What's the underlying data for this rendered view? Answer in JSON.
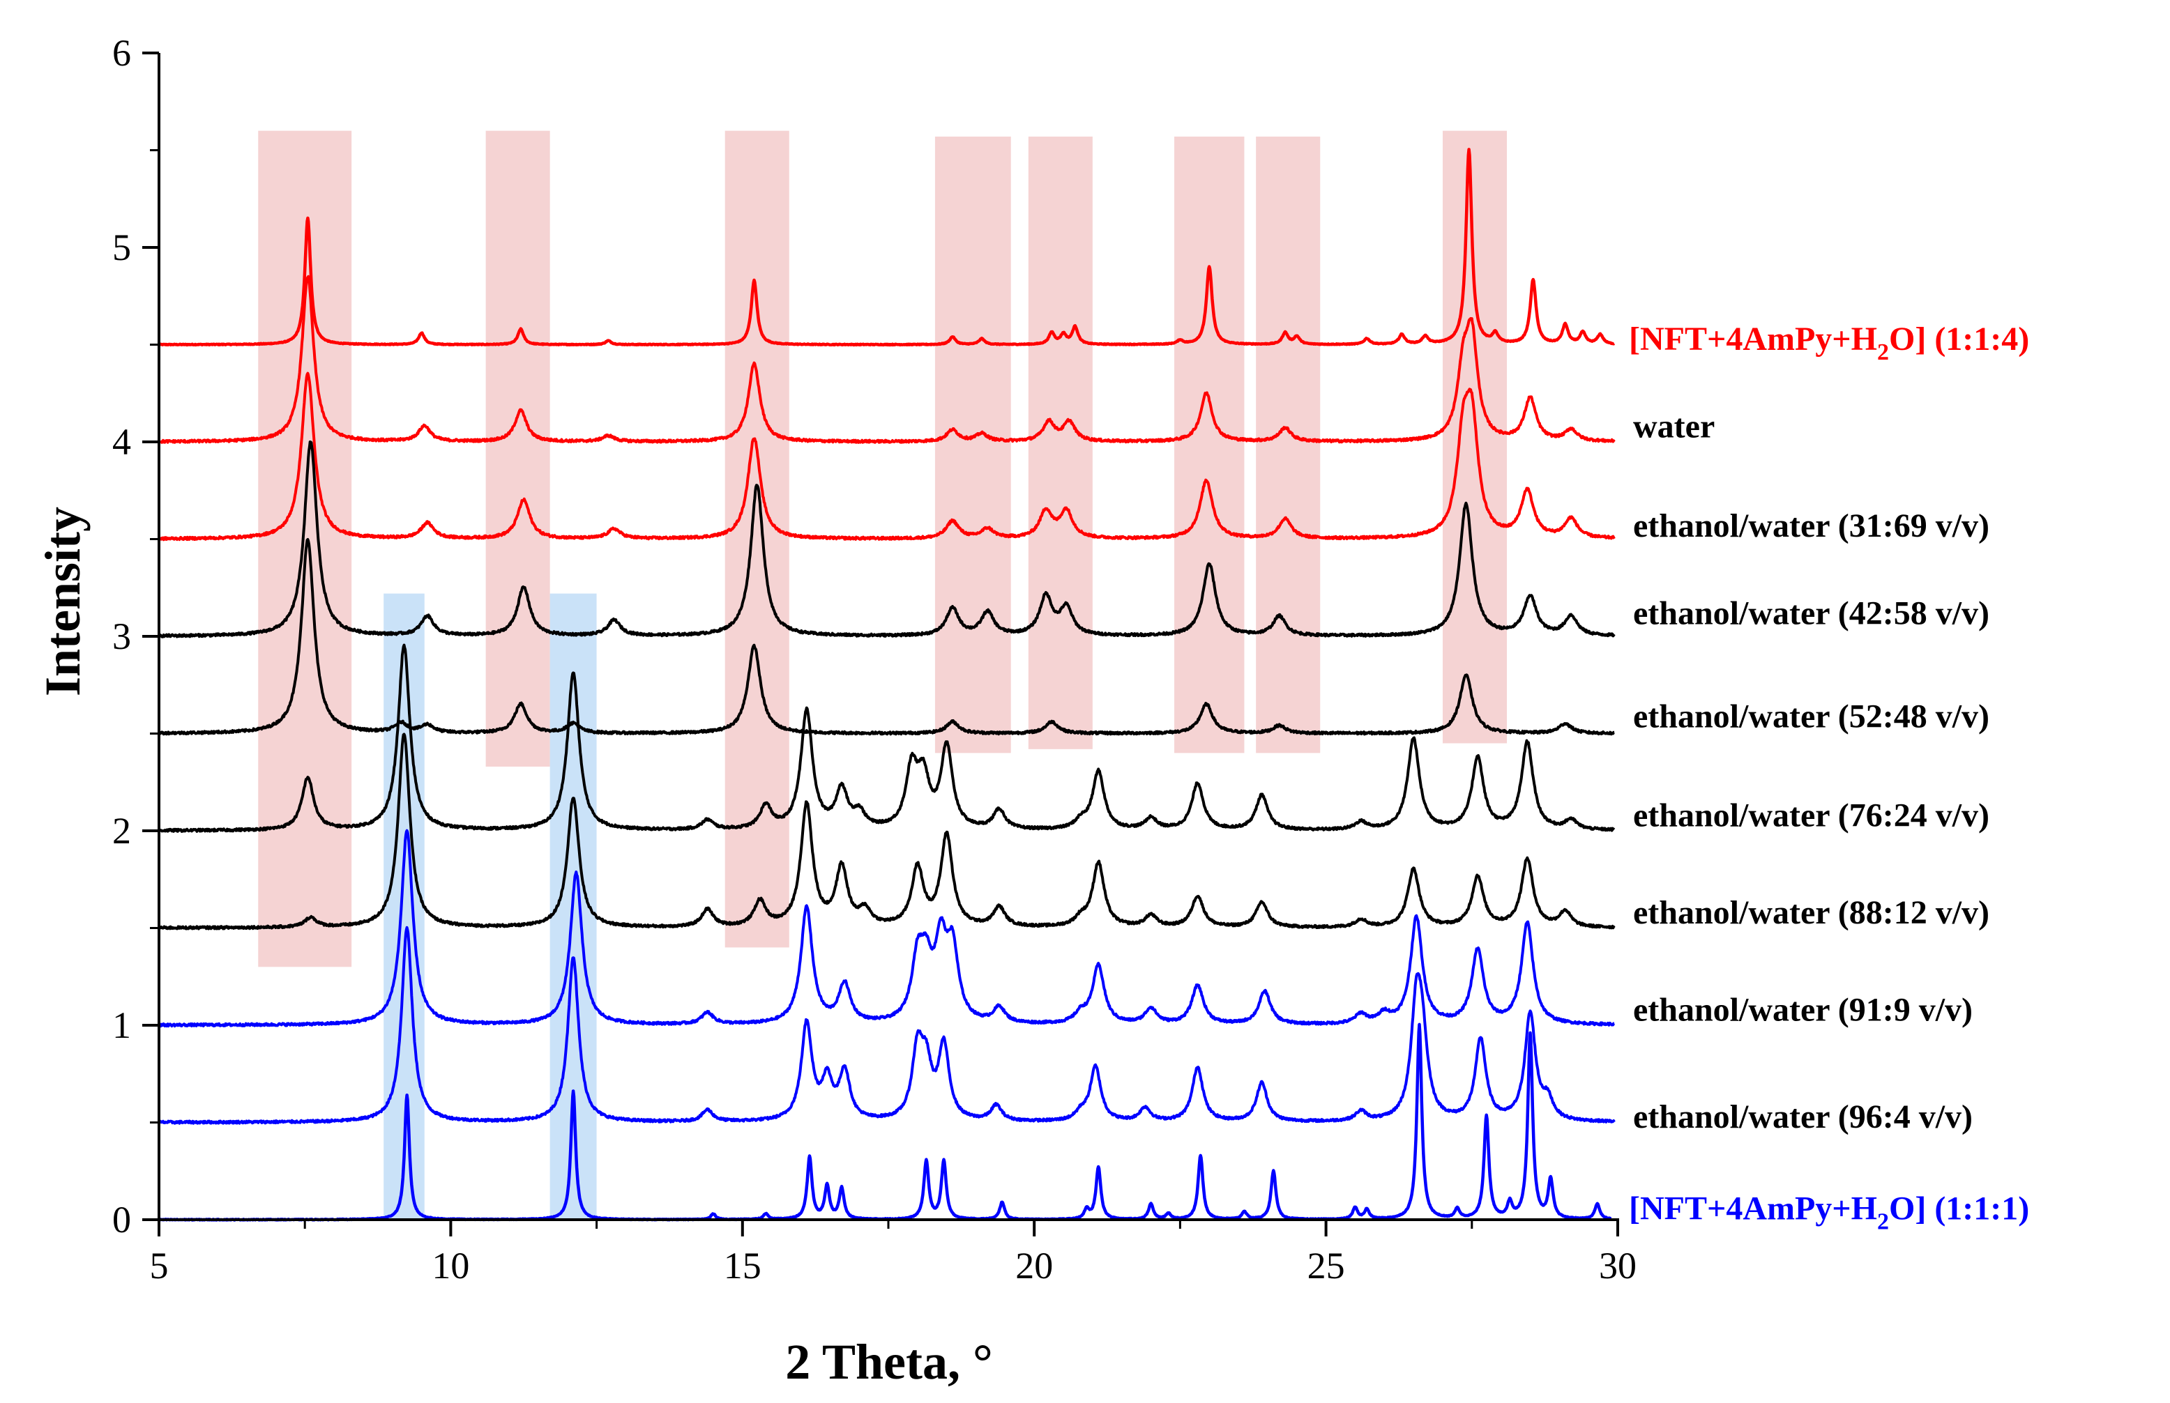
{
  "chart_data": {
    "type": "line",
    "title": "",
    "xlabel": "2 Theta, °",
    "ylabel": "Intensity",
    "xlim": [
      5,
      30
    ],
    "ylim": [
      0,
      6
    ],
    "xticks": [
      5,
      10,
      15,
      20,
      25,
      30
    ],
    "yticks": [
      0,
      1,
      2,
      3,
      4,
      5,
      6
    ],
    "grid": false,
    "colors": {
      "red": "#ff0000",
      "black": "#000000",
      "blue": "#0000ff",
      "highlight_red": "#f2c4c4",
      "highlight_blue": "#b8d8f5"
    },
    "highlight_bands": [
      {
        "color": "red",
        "x0": 6.7,
        "x1": 8.3,
        "y0": 1.3,
        "y1": 5.6
      },
      {
        "color": "red",
        "x0": 10.6,
        "x1": 11.7,
        "y0": 2.33,
        "y1": 5.6
      },
      {
        "color": "red",
        "x0": 14.7,
        "x1": 15.8,
        "y0": 1.4,
        "y1": 5.6
      },
      {
        "color": "red",
        "x0": 18.3,
        "x1": 19.6,
        "y0": 2.4,
        "y1": 5.57
      },
      {
        "color": "red",
        "x0": 19.9,
        "x1": 21.0,
        "y0": 2.42,
        "y1": 5.57
      },
      {
        "color": "red",
        "x0": 22.4,
        "x1": 23.6,
        "y0": 2.4,
        "y1": 5.57
      },
      {
        "color": "red",
        "x0": 23.8,
        "x1": 24.9,
        "y0": 2.4,
        "y1": 5.57
      },
      {
        "color": "red",
        "x0": 27.0,
        "x1": 28.1,
        "y0": 2.45,
        "y1": 5.6
      },
      {
        "color": "blue",
        "x0": 8.85,
        "x1": 9.55,
        "y0": 0.0,
        "y1": 3.22
      },
      {
        "color": "blue",
        "x0": 11.7,
        "x1": 12.5,
        "y0": 0.0,
        "y1": 3.22
      }
    ],
    "series": [
      {
        "name": "[NFT+4AmPy+H2O] (1:1:4)",
        "label_main": "[NFT+4AmPy+H",
        "label_sub": "2",
        "label_tail": "O] (1:1:4)",
        "color": "red",
        "baseline": 4.5,
        "width": 0.06,
        "label_y": 4.53,
        "peaks": [
          [
            7.55,
            0.65
          ],
          [
            9.5,
            0.06
          ],
          [
            11.2,
            0.08
          ],
          [
            12.7,
            0.02
          ],
          [
            15.2,
            0.33
          ],
          [
            18.6,
            0.04
          ],
          [
            19.1,
            0.03
          ],
          [
            20.3,
            0.06
          ],
          [
            20.5,
            0.05
          ],
          [
            20.7,
            0.09
          ],
          [
            22.5,
            0.02
          ],
          [
            23.0,
            0.4
          ],
          [
            24.3,
            0.06
          ],
          [
            24.5,
            0.04
          ],
          [
            25.7,
            0.03
          ],
          [
            26.3,
            0.05
          ],
          [
            26.7,
            0.04
          ],
          [
            27.45,
            1.0
          ],
          [
            27.9,
            0.05
          ],
          [
            28.55,
            0.33
          ],
          [
            29.1,
            0.1
          ],
          [
            29.4,
            0.06
          ],
          [
            29.7,
            0.05
          ]
        ]
      },
      {
        "name": "water",
        "label_main": "water",
        "label_sub": "",
        "label_tail": "",
        "color": "red",
        "baseline": 4.0,
        "width": 0.12,
        "label_y": 4.08,
        "peaks": [
          [
            7.55,
            0.85
          ],
          [
            9.55,
            0.08
          ],
          [
            11.2,
            0.16
          ],
          [
            12.7,
            0.03
          ],
          [
            15.2,
            0.4
          ],
          [
            18.6,
            0.06
          ],
          [
            19.1,
            0.04
          ],
          [
            20.25,
            0.1
          ],
          [
            20.6,
            0.1
          ],
          [
            22.95,
            0.25
          ],
          [
            24.3,
            0.07
          ],
          [
            27.35,
            0.32
          ],
          [
            27.5,
            0.5
          ],
          [
            28.5,
            0.22
          ],
          [
            29.2,
            0.06
          ]
        ]
      },
      {
        "name": "ethanol/water (31:69 v/v)",
        "label_main": "ethanol/water (31:69 v/v)",
        "label_sub": "",
        "label_tail": "",
        "color": "red",
        "baseline": 3.5,
        "width": 0.13,
        "label_y": 3.57,
        "peaks": [
          [
            7.55,
            0.85
          ],
          [
            9.6,
            0.08
          ],
          [
            11.25,
            0.2
          ],
          [
            12.8,
            0.05
          ],
          [
            15.2,
            0.52
          ],
          [
            18.6,
            0.09
          ],
          [
            19.2,
            0.05
          ],
          [
            20.2,
            0.14
          ],
          [
            20.55,
            0.14
          ],
          [
            22.95,
            0.3
          ],
          [
            24.3,
            0.1
          ],
          [
            27.35,
            0.45
          ],
          [
            27.5,
            0.55
          ],
          [
            28.45,
            0.24
          ],
          [
            29.2,
            0.1
          ]
        ]
      },
      {
        "name": "ethanol/water (42:58 v/v)",
        "label_main": "ethanol/water (42:58 v/v)",
        "label_sub": "",
        "label_tail": "",
        "color": "black",
        "baseline": 3.0,
        "width": 0.13,
        "label_y": 3.12,
        "peaks": [
          [
            7.6,
            1.0
          ],
          [
            9.6,
            0.1
          ],
          [
            11.25,
            0.25
          ],
          [
            12.8,
            0.08
          ],
          [
            15.25,
            0.78
          ],
          [
            18.6,
            0.14
          ],
          [
            19.2,
            0.12
          ],
          [
            20.2,
            0.2
          ],
          [
            20.55,
            0.14
          ],
          [
            23.0,
            0.37
          ],
          [
            24.2,
            0.1
          ],
          [
            27.4,
            0.68
          ],
          [
            28.5,
            0.2
          ],
          [
            29.2,
            0.1
          ]
        ]
      },
      {
        "name": "ethanol/water (52:48 v/v)",
        "label_main": "ethanol/water (52:48 v/v)",
        "label_sub": "",
        "label_tail": "",
        "color": "black",
        "baseline": 2.5,
        "width": 0.13,
        "label_y": 2.59,
        "peaks": [
          [
            7.55,
            1.0
          ],
          [
            9.15,
            0.05
          ],
          [
            9.6,
            0.04
          ],
          [
            11.2,
            0.15
          ],
          [
            12.1,
            0.05
          ],
          [
            15.2,
            0.45
          ],
          [
            18.6,
            0.06
          ],
          [
            20.3,
            0.06
          ],
          [
            22.95,
            0.15
          ],
          [
            24.2,
            0.04
          ],
          [
            27.4,
            0.3
          ],
          [
            29.1,
            0.05
          ]
        ]
      },
      {
        "name": "ethanol/water (76:24 v/v)",
        "label_main": "ethanol/water (76:24 v/v)",
        "label_sub": "",
        "label_tail": "",
        "color": "black",
        "baseline": 2.0,
        "width": 0.12,
        "label_y": 2.08,
        "peaks": [
          [
            7.55,
            0.27
          ],
          [
            9.2,
            0.95
          ],
          [
            12.1,
            0.81
          ],
          [
            14.4,
            0.05
          ],
          [
            15.4,
            0.12
          ],
          [
            16.1,
            0.61
          ],
          [
            16.7,
            0.2
          ],
          [
            17.0,
            0.08
          ],
          [
            17.9,
            0.3
          ],
          [
            18.1,
            0.25
          ],
          [
            18.5,
            0.42
          ],
          [
            19.4,
            0.1
          ],
          [
            20.8,
            0.04
          ],
          [
            21.1,
            0.3
          ],
          [
            22.0,
            0.06
          ],
          [
            22.8,
            0.24
          ],
          [
            23.9,
            0.18
          ],
          [
            25.6,
            0.04
          ],
          [
            26.5,
            0.47
          ],
          [
            27.6,
            0.37
          ],
          [
            28.45,
            0.45
          ],
          [
            29.2,
            0.05
          ]
        ]
      },
      {
        "name": "ethanol/water (88:12 v/v)",
        "label_main": "ethanol/water (88:12 v/v)",
        "label_sub": "",
        "label_tail": "",
        "color": "black",
        "baseline": 1.5,
        "width": 0.12,
        "label_y": 1.58,
        "peaks": [
          [
            7.6,
            0.05
          ],
          [
            9.2,
            1.0
          ],
          [
            12.1,
            0.67
          ],
          [
            14.4,
            0.09
          ],
          [
            15.3,
            0.13
          ],
          [
            16.1,
            0.63
          ],
          [
            16.7,
            0.3
          ],
          [
            17.1,
            0.08
          ],
          [
            18.0,
            0.3
          ],
          [
            18.5,
            0.47
          ],
          [
            19.4,
            0.1
          ],
          [
            20.8,
            0.04
          ],
          [
            21.1,
            0.33
          ],
          [
            22.0,
            0.06
          ],
          [
            22.8,
            0.16
          ],
          [
            23.9,
            0.13
          ],
          [
            25.6,
            0.04
          ],
          [
            26.5,
            0.3
          ],
          [
            27.6,
            0.26
          ],
          [
            28.45,
            0.35
          ],
          [
            29.1,
            0.08
          ]
        ]
      },
      {
        "name": "ethanol/water (91:9 v/v)",
        "label_main": "ethanol/water (91:9 v/v)",
        "label_sub": "",
        "label_tail": "",
        "color": "blue",
        "baseline": 1.0,
        "width": 0.12,
        "label_y": 1.08,
        "peaks": [
          [
            9.25,
            1.0
          ],
          [
            12.15,
            0.78
          ],
          [
            14.4,
            0.06
          ],
          [
            16.1,
            0.6
          ],
          [
            16.75,
            0.2
          ],
          [
            18.0,
            0.3
          ],
          [
            18.15,
            0.25
          ],
          [
            18.4,
            0.38
          ],
          [
            18.6,
            0.36
          ],
          [
            19.4,
            0.08
          ],
          [
            20.8,
            0.05
          ],
          [
            21.1,
            0.3
          ],
          [
            22.0,
            0.08
          ],
          [
            22.8,
            0.2
          ],
          [
            23.95,
            0.17
          ],
          [
            25.6,
            0.05
          ],
          [
            26.0,
            0.05
          ],
          [
            26.55,
            0.55
          ],
          [
            27.6,
            0.38
          ],
          [
            28.45,
            0.52
          ]
        ]
      },
      {
        "name": "ethanol/water (96:4 v/v)",
        "label_main": "ethanol/water (96:4 v/v)",
        "label_sub": "",
        "label_tail": "",
        "color": "blue",
        "baseline": 0.5,
        "width": 0.11,
        "label_y": 0.53,
        "peaks": [
          [
            9.25,
            1.0
          ],
          [
            12.1,
            0.85
          ],
          [
            14.4,
            0.06
          ],
          [
            16.1,
            0.5
          ],
          [
            16.45,
            0.2
          ],
          [
            16.75,
            0.25
          ],
          [
            18.0,
            0.35
          ],
          [
            18.15,
            0.25
          ],
          [
            18.45,
            0.38
          ],
          [
            19.35,
            0.08
          ],
          [
            20.8,
            0.04
          ],
          [
            21.05,
            0.28
          ],
          [
            21.9,
            0.07
          ],
          [
            22.8,
            0.28
          ],
          [
            23.9,
            0.2
          ],
          [
            25.6,
            0.05
          ],
          [
            26.55,
            0.55
          ],
          [
            26.65,
            0.35
          ],
          [
            27.65,
            0.42
          ],
          [
            28.5,
            0.55
          ],
          [
            28.8,
            0.1
          ]
        ]
      },
      {
        "name": "[NFT+4AmPy+H2O] (1:1:1)",
        "label_main": "[NFT+4AmPy+H",
        "label_sub": "2",
        "label_tail": "O] (1:1:1)",
        "color": "blue",
        "baseline": 0.0,
        "width": 0.05,
        "label_y": 0.06,
        "peaks": [
          [
            9.25,
            0.64
          ],
          [
            12.1,
            0.66
          ],
          [
            14.5,
            0.03
          ],
          [
            15.4,
            0.03
          ],
          [
            16.15,
            0.32
          ],
          [
            16.45,
            0.17
          ],
          [
            16.7,
            0.16
          ],
          [
            18.15,
            0.3
          ],
          [
            18.45,
            0.3
          ],
          [
            19.45,
            0.09
          ],
          [
            20.9,
            0.05
          ],
          [
            21.1,
            0.27
          ],
          [
            22.0,
            0.08
          ],
          [
            22.3,
            0.03
          ],
          [
            22.85,
            0.33
          ],
          [
            23.6,
            0.04
          ],
          [
            24.1,
            0.25
          ],
          [
            25.5,
            0.06
          ],
          [
            25.7,
            0.05
          ],
          [
            26.6,
            1.0
          ],
          [
            27.25,
            0.05
          ],
          [
            27.75,
            0.53
          ],
          [
            28.15,
            0.08
          ],
          [
            28.5,
            0.95
          ],
          [
            28.85,
            0.2
          ],
          [
            29.65,
            0.08
          ]
        ]
      }
    ]
  }
}
